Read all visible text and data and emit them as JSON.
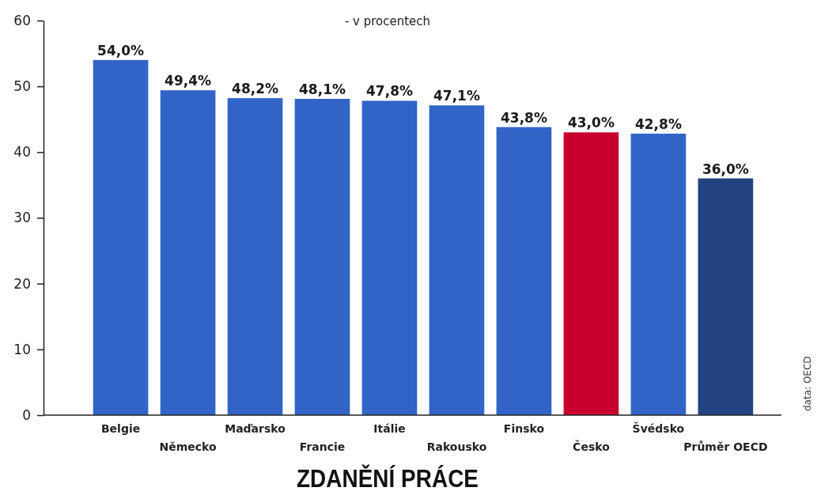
{
  "chart_data": {
    "type": "bar",
    "title": "ZDANĚNÍ PRÁCE",
    "subtitle": "- v procentech",
    "categories": [
      "Belgie",
      "Německo",
      "Maďarsko",
      "Francie",
      "Itálie",
      "Rakousko",
      "Finsko",
      "Česko",
      "Švédsko",
      "Průměr OECD"
    ],
    "values": [
      54.0,
      49.4,
      48.2,
      48.1,
      47.8,
      47.1,
      43.8,
      43.0,
      42.8,
      36.0
    ],
    "colors": [
      "#3264c8",
      "#3264c8",
      "#3264c8",
      "#3264c8",
      "#3264c8",
      "#3264c8",
      "#3264c8",
      "#c8002d",
      "#3264c8",
      "#224282"
    ],
    "value_labels": [
      "54,0%",
      "49,4%",
      "48,2%",
      "48,1%",
      "47,8%",
      "47,1%",
      "43,8%",
      "43,0%",
      "42,8%",
      "36,0%"
    ],
    "ylim": [
      0,
      60
    ],
    "yticks": [
      0,
      10,
      20,
      30,
      40,
      50,
      60
    ],
    "annotations": [
      "data: OECD"
    ]
  }
}
